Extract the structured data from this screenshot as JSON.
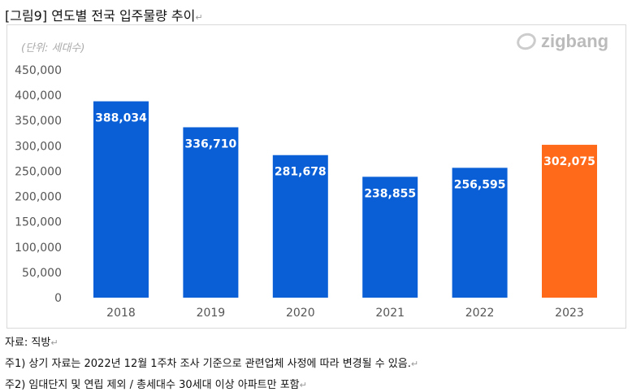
{
  "title": "[그림9] 연도별 전국 입주물량 추이",
  "logo": "zigbang",
  "notes": [
    "자료: 직방",
    "주1) 상기 자료는 2022년 12월 1주차 조사 기준으로 관련업체 사정에 따라 변경될 수 있음.",
    "주2) 임대단지 및 연립 제외 / 총세대수 30세대 이상 아파트만 포함"
  ],
  "chart_data": {
    "type": "bar",
    "unit_label": "(단위: 세대수)",
    "categories": [
      "2018",
      "2019",
      "2020",
      "2021",
      "2022",
      "2023"
    ],
    "values": [
      388034,
      336710,
      281678,
      238855,
      256595,
      302075
    ],
    "value_labels": [
      "388,034",
      "336,710",
      "281,678",
      "238,855",
      "256,595",
      "302,075"
    ],
    "yticks": [
      "0",
      "50,000",
      "100,000",
      "150,000",
      "200,000",
      "250,000",
      "300,000",
      "350,000",
      "400,000",
      "450,000"
    ],
    "ylim": [
      0,
      450000
    ],
    "grid": false,
    "colors": [
      "#0a5fd6",
      "#0a5fd6",
      "#0a5fd6",
      "#0a5fd6",
      "#0a5fd6",
      "#ff6a1a"
    ]
  }
}
